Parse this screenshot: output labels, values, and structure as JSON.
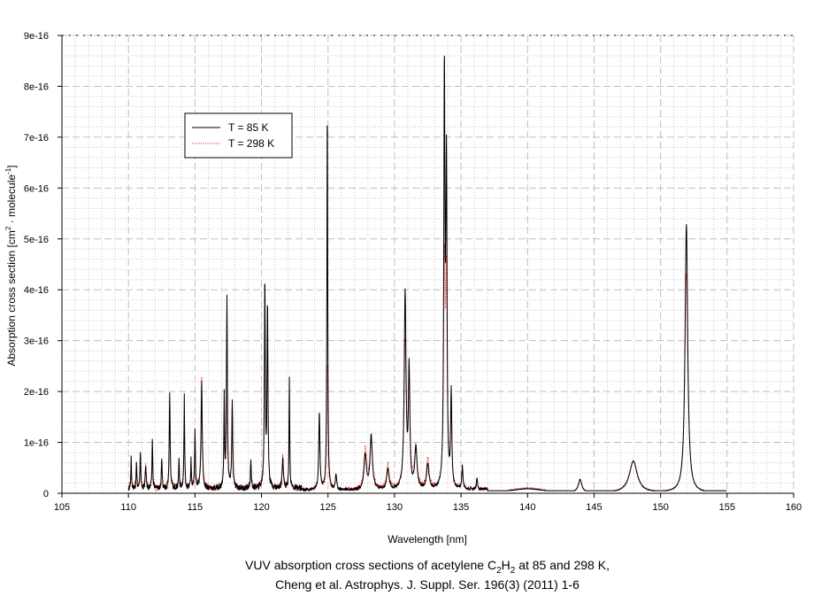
{
  "chart_data": {
    "type": "line",
    "xlabel": "Wavelength [nm]",
    "ylabel_main": "Absorption cross section [cm",
    "ylabel_sup1": "2",
    "ylabel_mid": " · molecule",
    "ylabel_sup2": "-1",
    "ylabel_end": "]",
    "xlim": [
      105,
      160
    ],
    "ylim": [
      0,
      9e-16
    ],
    "xticks": [
      105,
      110,
      115,
      120,
      125,
      130,
      135,
      140,
      145,
      150,
      155,
      160
    ],
    "yticks": [
      0,
      1e-16,
      2e-16,
      3e-16,
      4e-16,
      5e-16,
      6e-16,
      7e-16,
      8e-16,
      9e-16
    ],
    "ytick_labels": [
      "0",
      "1e-16",
      "2e-16",
      "3e-16",
      "4e-16",
      "5e-16",
      "6e-16",
      "7e-16",
      "8e-16",
      "9e-16"
    ],
    "grid": true,
    "legend_position": "upper-left",
    "caption": {
      "line1_a": "VUV absorption cross sections of acetylene C",
      "line1_sub1": "2",
      "line1_b": "H",
      "line1_sub2": "2",
      "line1_c": " at 85 and 298 K,",
      "line2": "Cheng et al. Astrophys. J. Suppl. Ser. 196(3) (2011) 1-6"
    },
    "x_range_data": [
      110,
      155
    ],
    "y_unit": 1e-16,
    "series": [
      {
        "name": "T = 85 K",
        "color": "#000000",
        "style": "solid",
        "peaks": [
          [
            110.2,
            0.6,
            0.03
          ],
          [
            110.6,
            0.55,
            0.03
          ],
          [
            110.9,
            0.75,
            0.03
          ],
          [
            111.3,
            0.45,
            0.04
          ],
          [
            111.8,
            1.0,
            0.03
          ],
          [
            112.5,
            0.6,
            0.03
          ],
          [
            113.1,
            1.88,
            0.04
          ],
          [
            113.8,
            0.6,
            0.03
          ],
          [
            114.2,
            1.85,
            0.03
          ],
          [
            114.7,
            0.55,
            0.03
          ],
          [
            115.0,
            1.2,
            0.03
          ],
          [
            115.5,
            2.1,
            0.05
          ],
          [
            117.2,
            1.8,
            0.03
          ],
          [
            117.4,
            3.75,
            0.04
          ],
          [
            117.8,
            1.7,
            0.04
          ],
          [
            119.2,
            0.5,
            0.04
          ],
          [
            120.25,
            4.12,
            0.04
          ],
          [
            120.45,
            3.6,
            0.04
          ],
          [
            121.6,
            0.65,
            0.05
          ],
          [
            122.1,
            2.15,
            0.03
          ],
          [
            124.35,
            1.55,
            0.05
          ],
          [
            124.95,
            7.7,
            0.035
          ],
          [
            125.6,
            0.3,
            0.05
          ],
          [
            127.8,
            0.7,
            0.1
          ],
          [
            128.25,
            1.05,
            0.1
          ],
          [
            129.5,
            0.4,
            0.1
          ],
          [
            130.8,
            3.88,
            0.08
          ],
          [
            131.1,
            2.27,
            0.06
          ],
          [
            131.6,
            0.8,
            0.1
          ],
          [
            132.5,
            0.5,
            0.1
          ],
          [
            133.75,
            8.15,
            0.05
          ],
          [
            133.9,
            6.15,
            0.05
          ],
          [
            134.26,
            1.85,
            0.05
          ],
          [
            135.1,
            0.45,
            0.05
          ],
          [
            136.2,
            0.2,
            0.05
          ],
          [
            140.0,
            0.08,
            1.5
          ],
          [
            143.95,
            0.25,
            0.15
          ],
          [
            147.95,
            0.62,
            0.35
          ],
          [
            151.94,
            5.28,
            0.12
          ]
        ]
      },
      {
        "name": "T = 298 K",
        "color": "#ff0000",
        "style": "dotted",
        "peaks": [
          [
            110.2,
            0.4,
            0.04
          ],
          [
            110.6,
            0.45,
            0.04
          ],
          [
            110.9,
            0.6,
            0.04
          ],
          [
            111.3,
            0.45,
            0.05
          ],
          [
            111.8,
            0.8,
            0.04
          ],
          [
            112.5,
            0.55,
            0.04
          ],
          [
            113.1,
            1.6,
            0.05
          ],
          [
            113.8,
            0.5,
            0.04
          ],
          [
            114.2,
            1.2,
            0.04
          ],
          [
            114.7,
            0.5,
            0.04
          ],
          [
            115.0,
            1.0,
            0.04
          ],
          [
            115.5,
            2.15,
            0.06
          ],
          [
            117.2,
            1.4,
            0.04
          ],
          [
            117.4,
            1.8,
            0.05
          ],
          [
            117.8,
            1.6,
            0.05
          ],
          [
            119.2,
            0.45,
            0.05
          ],
          [
            120.25,
            3.4,
            0.05
          ],
          [
            120.45,
            2.8,
            0.05
          ],
          [
            121.6,
            0.6,
            0.06
          ],
          [
            122.1,
            1.5,
            0.04
          ],
          [
            124.35,
            1.3,
            0.06
          ],
          [
            124.95,
            2.5,
            0.05
          ],
          [
            125.6,
            0.3,
            0.06
          ],
          [
            127.8,
            0.8,
            0.12
          ],
          [
            128.25,
            1.0,
            0.12
          ],
          [
            129.5,
            0.5,
            0.12
          ],
          [
            130.8,
            2.8,
            0.1
          ],
          [
            131.1,
            1.9,
            0.08
          ],
          [
            131.6,
            0.8,
            0.12
          ],
          [
            132.5,
            0.6,
            0.12
          ],
          [
            133.75,
            4.3,
            0.07
          ],
          [
            133.9,
            3.8,
            0.06
          ],
          [
            134.26,
            1.7,
            0.06
          ],
          [
            135.1,
            0.4,
            0.06
          ],
          [
            136.2,
            0.2,
            0.06
          ],
          [
            140.0,
            0.1,
            1.5
          ],
          [
            143.95,
            0.25,
            0.17
          ],
          [
            147.95,
            0.62,
            0.38
          ],
          [
            151.94,
            4.3,
            0.14
          ]
        ]
      }
    ]
  }
}
